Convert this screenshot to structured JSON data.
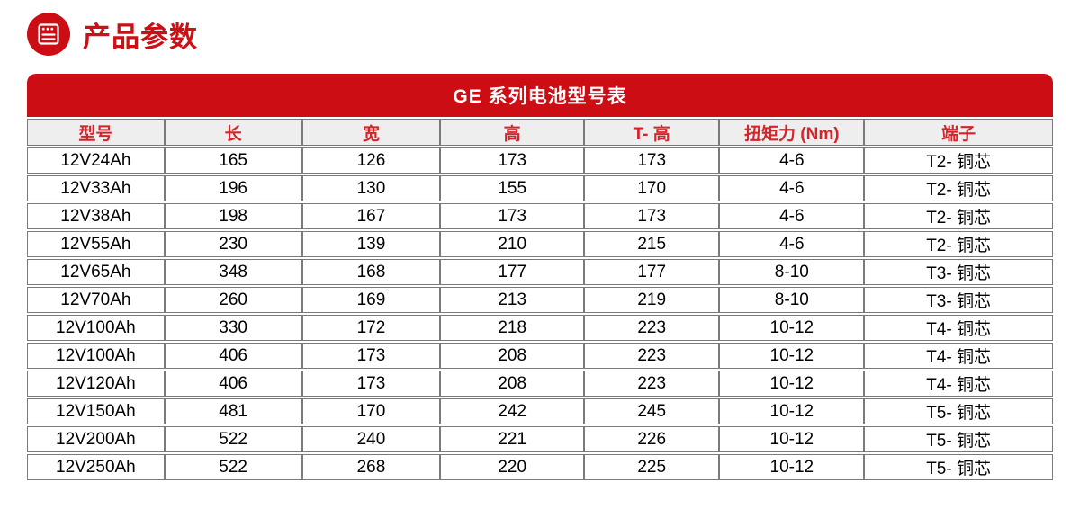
{
  "page": {
    "section_title": "产品参数"
  },
  "banner": {
    "title": "GE 系列电池型号表"
  },
  "table": {
    "columns": [
      "型号",
      "长",
      "宽",
      "高",
      "T- 高",
      "扭矩力 (Nm)",
      "端子"
    ],
    "column_widths_pct": [
      13.4,
      13.4,
      13.5,
      14.0,
      13.2,
      14.1,
      18.4
    ],
    "rows": [
      [
        "12V24Ah",
        "165",
        "126",
        "173",
        "173",
        "4-6",
        "T2- 铜芯"
      ],
      [
        "12V33Ah",
        "196",
        "130",
        "155",
        "170",
        "4-6",
        "T2- 铜芯"
      ],
      [
        "12V38Ah",
        "198",
        "167",
        "173",
        "173",
        "4-6",
        "T2- 铜芯"
      ],
      [
        "12V55Ah",
        "230",
        "139",
        "210",
        "215",
        "4-6",
        "T2- 铜芯"
      ],
      [
        "12V65Ah",
        "348",
        "168",
        "177",
        "177",
        "8-10",
        "T3- 铜芯"
      ],
      [
        "12V70Ah",
        "260",
        "169",
        "213",
        "219",
        "8-10",
        "T3- 铜芯"
      ],
      [
        "12V100Ah",
        "330",
        "172",
        "218",
        "223",
        "10-12",
        "T4- 铜芯"
      ],
      [
        "12V100Ah",
        "406",
        "173",
        "208",
        "223",
        "10-12",
        "T4- 铜芯"
      ],
      [
        "12V120Ah",
        "406",
        "173",
        "208",
        "223",
        "10-12",
        "T4- 铜芯"
      ],
      [
        "12V150Ah",
        "481",
        "170",
        "242",
        "245",
        "10-12",
        "T5- 铜芯"
      ],
      [
        "12V200Ah",
        "522",
        "240",
        "221",
        "226",
        "10-12",
        "T5- 铜芯"
      ],
      [
        "12V250Ah",
        "522",
        "268",
        "220",
        "225",
        "10-12",
        "T5- 铜芯"
      ]
    ]
  },
  "colors": {
    "brand_red": "#cc0d14",
    "title_red": "#cb1016",
    "header_text_red": "#d4252b",
    "header_bg": "#efeeee",
    "border_gray": "#7a7a7a"
  },
  "icons": {
    "section_icon": "list-window-icon"
  }
}
